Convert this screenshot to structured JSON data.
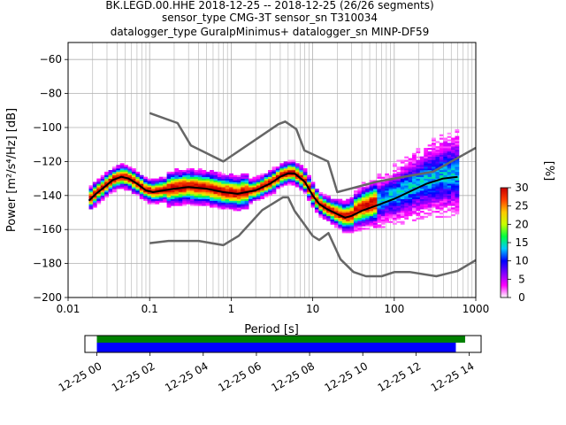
{
  "header": {
    "line1": "BK.LEGD.00.HHE   2018-12-25 -- 2018-12-25  (26/26 segments)",
    "line2": "sensor_type CMG-3T sensor_sn T310034",
    "line3": "datalogger_type GuralpMinimus+ datalogger_sn MINP-DF59"
  },
  "chart_data": [
    {
      "type": "heatmap",
      "title": "",
      "xlabel": "Period [s]",
      "ylabel": "Power [m²/s⁴/Hz] [dB]",
      "xscale": "log",
      "xlim": [
        0.01,
        1000
      ],
      "ylim": [
        -200,
        -50
      ],
      "x_ticks": [
        0.01,
        0.1,
        1,
        10,
        100,
        1000
      ],
      "x_tick_labels": [
        "0.01",
        "0.1",
        "1",
        "10",
        "100",
        "1000"
      ],
      "y_ticks": [
        -200,
        -180,
        -160,
        -140,
        -120,
        -100,
        -80,
        -60
      ],
      "grid": true,
      "colorbar": {
        "label": "[%]",
        "min": 0,
        "max": 30,
        "ticks": [
          0,
          5,
          10,
          15,
          20,
          25,
          30
        ],
        "colors": [
          "#ffffff",
          "#ff00ff",
          "#7f00ff",
          "#0000ff",
          "#00c8ff",
          "#00ff40",
          "#c8ff00",
          "#ffc800",
          "#ff4000",
          "#c80000"
        ]
      },
      "series": [
        {
          "role": "mode",
          "color": "#000000",
          "x": [
            0.018,
            0.022,
            0.028,
            0.035,
            0.045,
            0.055,
            0.07,
            0.09,
            0.11,
            0.15,
            0.2,
            0.3,
            0.5,
            0.8,
            1.2,
            2,
            3,
            4,
            5,
            6,
            8,
            10,
            12,
            15,
            20,
            25,
            30,
            40,
            60,
            100,
            150,
            250,
            400,
            600
          ],
          "y": [
            -143,
            -139,
            -135,
            -131,
            -129,
            -130,
            -133,
            -137,
            -138,
            -137,
            -136,
            -135,
            -136,
            -138,
            -139,
            -137,
            -133,
            -129,
            -127,
            -127,
            -132,
            -140,
            -145,
            -148,
            -151,
            -153,
            -152,
            -149,
            -146,
            -142,
            -138,
            -133,
            -130,
            -129
          ]
        },
        {
          "role": "noise-model-high",
          "color": "#666666",
          "x": [
            0.1,
            0.22,
            0.32,
            0.8,
            3.8,
            4.6,
            6.3,
            7.9,
            15.4,
            20,
            60,
            100,
            300,
            1000
          ],
          "y": [
            -91.5,
            -97.4,
            -110.5,
            -120,
            -98,
            -96.5,
            -101,
            -113.5,
            -120,
            -138,
            -132,
            -130,
            -126,
            -112
          ]
        },
        {
          "role": "noise-model-low",
          "color": "#666666",
          "x": [
            0.1,
            0.17,
            0.4,
            0.8,
            1.24,
            2.4,
            4.3,
            5.0,
            6.0,
            10,
            12,
            15.6,
            21.9,
            31.6,
            45,
            70,
            101,
            154,
            328,
            600,
            1000
          ],
          "y": [
            -168,
            -166.7,
            -166.7,
            -169.2,
            -163.7,
            -148.6,
            -141.1,
            -141.1,
            -149,
            -163.8,
            -166.2,
            -162.1,
            -177.5,
            -185,
            -187.5,
            -187.5,
            -185,
            -185,
            -187.5,
            -184.4,
            -178
          ]
        }
      ]
    },
    {
      "type": "timeline",
      "xlabel": "",
      "x_tick_labels": [
        "12-25 00",
        "12-25 02",
        "12-25 04",
        "12-25 06",
        "12-25 08",
        "12-25 10",
        "12-25 12",
        "12-25 14"
      ],
      "x_ticks_hours": [
        0,
        2,
        4,
        6,
        8,
        10,
        12,
        14
      ],
      "xlim_hours": [
        -0.45,
        14.45
      ],
      "bars": [
        {
          "role": "data-available",
          "color": "#008000",
          "start_hours": 0.0,
          "end_hours": 13.85
        },
        {
          "role": "segments-used",
          "color": "#0000ff",
          "start_hours": 0.0,
          "end_hours": 13.5
        }
      ]
    }
  ]
}
